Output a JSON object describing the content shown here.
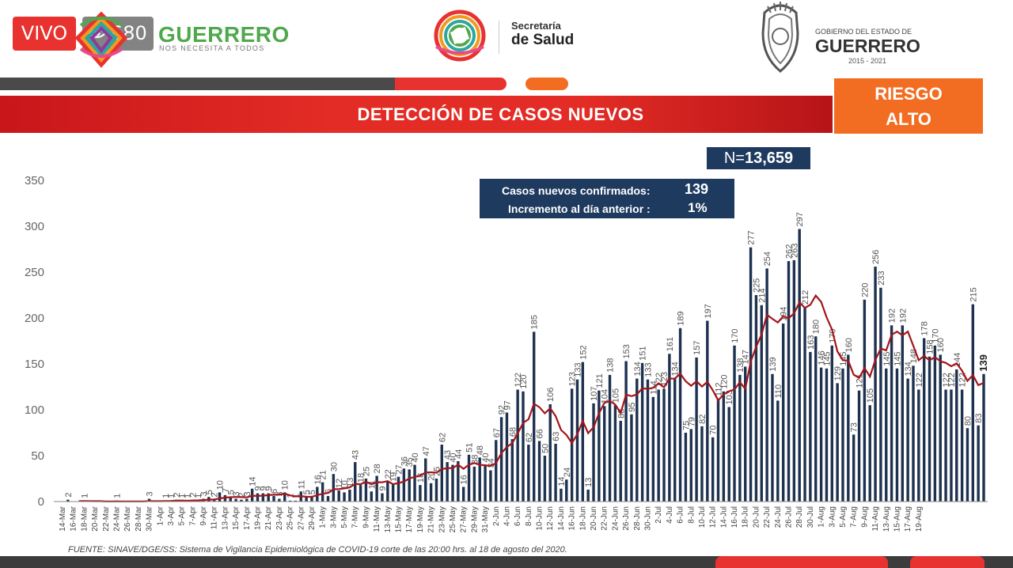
{
  "live": {
    "label": "VIVO",
    "viewers": "680"
  },
  "logo_left": {
    "name": "GUERRERO",
    "tagline": "NOS NECESITA A TODOS"
  },
  "logo_center": {
    "line1": "Secretaría",
    "line2": "de Salud"
  },
  "logo_right": {
    "line1": "GOBIERNO DEL ESTADO DE",
    "line2": "GUERRERO",
    "line3": "2015 - 2021"
  },
  "title": "DETECCIÓN DE CASOS NUEVOS",
  "risk": {
    "line1": "RIESGO",
    "line2": "ALTO"
  },
  "total": {
    "prefix": "N=",
    "value": "13,659"
  },
  "info": {
    "line1_label": "Casos nuevos confirmados:",
    "line1_value": "139",
    "line2_label": "Incremento al día anterior :",
    "line2_value": "1%"
  },
  "source": "FUENTE: SINAVE/DGE/SS: Sistema de Vigilancia Epidemiológica de COVID-19 corte de las 20:00 hrs. al 18 de agosto del 2020.",
  "colors": {
    "red": "#e8322f",
    "orange": "#f26d21",
    "navy": "#1e3a5f",
    "bar": "#1e3250",
    "line": "#a3151b",
    "green": "#4fa94c"
  },
  "chart_data": {
    "type": "bar",
    "start_date": "2020-03-14",
    "x_tick_labels": [
      "14-Mar",
      "16-Mar",
      "18-Mar",
      "20-Mar",
      "22-Mar",
      "24-Mar",
      "26-Mar",
      "28-Mar",
      "30-Mar",
      "1-Apr",
      "3-Apr",
      "5-Apr",
      "7-Apr",
      "9-Apr",
      "11-Apr",
      "13-Apr",
      "15-Apr",
      "17-Apr",
      "19-Apr",
      "21-Apr",
      "23-Apr",
      "25-Apr",
      "27-Apr",
      "29-Apr",
      "1-May",
      "3-May",
      "5-May",
      "7-May",
      "9-May",
      "11-May",
      "13-May",
      "15-May",
      "17-May",
      "19-May",
      "21-May",
      "23-May",
      "25-May",
      "27-May",
      "29-May",
      "31-May",
      "2-Jun",
      "4-Jun",
      "6-Jun",
      "8-Jun",
      "10-Jun",
      "12-Jun",
      "14-Jun",
      "16-Jun",
      "18-Jun",
      "20-Jun",
      "22-Jun",
      "24-Jun",
      "26-Jun",
      "28-Jun",
      "30-Jun",
      "2-Jul",
      "4-Jul",
      "6-Jul",
      "8-Jul",
      "10-Jul",
      "12-Jul",
      "14-Jul",
      "16-Jul",
      "18-Jul",
      "20-Jul",
      "22-Jul",
      "24-Jul",
      "26-Jul",
      "28-Jul",
      "30-Jul",
      "1-Aug",
      "3-Aug",
      "5-Aug",
      "7-Aug",
      "9-Aug",
      "11-Aug",
      "13-Aug",
      "15-Aug",
      "17-Aug",
      "19-Aug"
    ],
    "values": [
      0,
      2,
      0,
      0,
      1,
      0,
      0,
      0,
      0,
      0,
      1,
      0,
      0,
      0,
      0,
      0,
      3,
      0,
      0,
      1,
      1,
      2,
      1,
      1,
      2,
      1,
      3,
      5,
      2,
      10,
      7,
      5,
      3,
      2,
      3,
      14,
      9,
      9,
      9,
      6,
      3,
      10,
      1,
      1,
      11,
      5,
      5,
      16,
      21,
      6,
      30,
      12,
      10,
      13,
      43,
      18,
      25,
      11,
      28,
      9,
      22,
      19,
      27,
      36,
      35,
      40,
      18,
      47,
      20,
      25,
      62,
      43,
      40,
      44,
      16,
      51,
      38,
      48,
      40,
      34,
      67,
      92,
      97,
      68,
      122,
      120,
      62,
      185,
      66,
      50,
      106,
      63,
      14,
      24,
      123,
      133,
      152,
      13,
      107,
      121,
      104,
      138,
      105,
      88,
      153,
      95,
      134,
      151,
      133,
      114,
      122,
      123,
      161,
      134,
      189,
      75,
      79,
      157,
      82,
      197,
      70,
      112,
      120,
      103,
      170,
      138,
      147,
      277,
      225,
      214,
      254,
      139,
      110,
      194,
      262,
      263,
      297,
      212,
      163,
      180,
      146,
      145,
      170,
      129,
      145,
      160,
      73,
      121,
      220,
      105,
      256,
      233,
      145,
      192,
      145,
      192,
      134,
      148,
      122,
      178,
      158,
      170,
      160,
      122,
      122,
      144,
      122,
      80,
      215,
      83,
      139
    ],
    "moving_average_shown": true,
    "ylim": [
      0,
      350
    ],
    "yticks": [
      0,
      50,
      100,
      150,
      200,
      250,
      300,
      350
    ],
    "series_names": [
      "Casos nuevos confirmados",
      "Promedio móvil"
    ],
    "grid": false
  }
}
